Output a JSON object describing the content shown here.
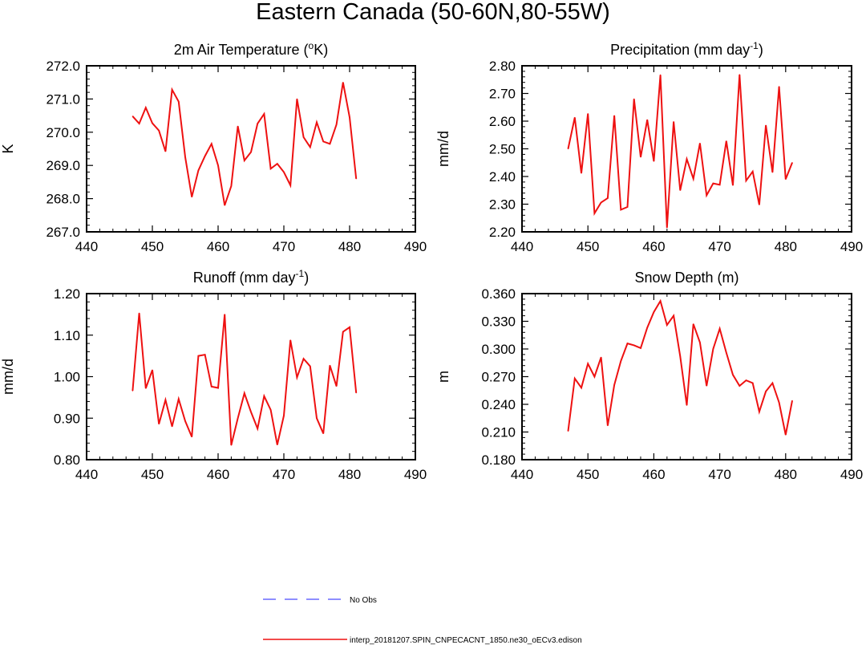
{
  "figure": {
    "title": "Eastern Canada (50-60N,80-55W)",
    "legend": [
      {
        "label": "No Obs",
        "color": "#4a4aff",
        "style": "dashed"
      },
      {
        "label": "interp_20181207.SPIN_CNPECACNT_1850.ne30_oECv3.edison",
        "color": "#ee1111",
        "style": "solid"
      }
    ]
  },
  "chart_data": [
    {
      "type": "line",
      "title": "2m Air Temperature (",
      "title_sup": "o",
      "title_tail": "K)",
      "xlabel": "",
      "ylabel": "K",
      "xlim": [
        440,
        490
      ],
      "ylim": [
        267.0,
        272.0
      ],
      "xticks": [
        "440",
        "450",
        "460",
        "470",
        "480",
        "490"
      ],
      "yticks": [
        "267.0",
        "268.0",
        "269.0",
        "270.0",
        "271.0",
        "272.0"
      ],
      "series": [
        {
          "name": "interp_20181207.SPIN_CNPECACNT_1850.ne30_oECv3.edison",
          "x": [
            447,
            448,
            449,
            450,
            451,
            452,
            453,
            454,
            455,
            456,
            457,
            458,
            459,
            460,
            461,
            462,
            463,
            464,
            465,
            466,
            467,
            468,
            469,
            470,
            471,
            472,
            473,
            474,
            475,
            476,
            477,
            478,
            479,
            480,
            481
          ],
          "values": [
            270.48,
            270.26,
            270.74,
            270.27,
            270.05,
            269.42,
            271.28,
            270.92,
            269.25,
            268.05,
            268.85,
            269.28,
            269.65,
            269.0,
            267.8,
            268.38,
            270.18,
            269.15,
            269.4,
            270.26,
            270.55,
            268.9,
            269.05,
            268.8,
            268.4,
            271.0,
            269.85,
            269.55,
            270.3,
            269.72,
            269.65,
            270.23,
            271.5,
            270.45,
            268.6
          ]
        }
      ]
    },
    {
      "type": "line",
      "title": "Precipitation (mm day",
      "title_sup": "-1",
      "title_tail": ")",
      "xlabel": "",
      "ylabel": "mm/d",
      "xlim": [
        440,
        490
      ],
      "ylim": [
        2.2,
        2.8
      ],
      "xticks": [
        "440",
        "450",
        "460",
        "470",
        "480",
        "490"
      ],
      "yticks": [
        "2.20",
        "2.30",
        "2.40",
        "2.50",
        "2.60",
        "2.70",
        "2.80"
      ],
      "series": [
        {
          "name": "interp_20181207.SPIN_CNPECACNT_1850.ne30_oECv3.edison",
          "x": [
            447,
            448,
            449,
            450,
            451,
            452,
            453,
            454,
            455,
            456,
            457,
            458,
            459,
            460,
            461,
            462,
            463,
            464,
            465,
            466,
            467,
            468,
            469,
            470,
            471,
            472,
            473,
            474,
            475,
            476,
            477,
            478,
            479,
            480,
            481
          ],
          "values": [
            2.5,
            2.613,
            2.412,
            2.627,
            2.267,
            2.306,
            2.322,
            2.62,
            2.28,
            2.29,
            2.68,
            2.47,
            2.605,
            2.455,
            2.767,
            2.215,
            2.598,
            2.35,
            2.463,
            2.392,
            2.52,
            2.332,
            2.375,
            2.37,
            2.528,
            2.368,
            2.768,
            2.385,
            2.418,
            2.298,
            2.585,
            2.415,
            2.725,
            2.39,
            2.45
          ]
        }
      ]
    },
    {
      "type": "line",
      "title": "Runoff (mm day",
      "title_sup": "-1",
      "title_tail": ")",
      "xlabel": "",
      "ylabel": "mm/d",
      "xlim": [
        440,
        490
      ],
      "ylim": [
        0.8,
        1.2
      ],
      "xticks": [
        "440",
        "450",
        "460",
        "470",
        "480",
        "490"
      ],
      "yticks": [
        "0.80",
        "0.90",
        "1.00",
        "1.10",
        "1.20"
      ],
      "series": [
        {
          "name": "interp_20181207.SPIN_CNPECACNT_1850.ne30_oECv3.edison",
          "x": [
            447,
            448,
            449,
            450,
            451,
            452,
            453,
            454,
            455,
            456,
            457,
            458,
            459,
            460,
            461,
            462,
            463,
            464,
            465,
            466,
            467,
            468,
            469,
            470,
            471,
            472,
            473,
            474,
            475,
            476,
            477,
            478,
            479,
            480,
            481
          ],
          "values": [
            0.966,
            1.153,
            0.972,
            1.016,
            0.886,
            0.944,
            0.88,
            0.946,
            0.893,
            0.855,
            1.05,
            1.053,
            0.976,
            0.973,
            1.15,
            0.835,
            0.9,
            0.96,
            0.915,
            0.875,
            0.953,
            0.92,
            0.836,
            0.906,
            1.088,
            0.998,
            1.043,
            1.025,
            0.9,
            0.863,
            1.027,
            0.977,
            1.108,
            1.119,
            0.961
          ]
        }
      ]
    },
    {
      "type": "line",
      "title": "Snow Depth (m)",
      "title_sup": "",
      "title_tail": "",
      "xlabel": "",
      "ylabel": "m",
      "xlim": [
        440,
        490
      ],
      "ylim": [
        0.18,
        0.36
      ],
      "xticks": [
        "440",
        "450",
        "460",
        "470",
        "480",
        "490"
      ],
      "yticks": [
        "0.180",
        "0.210",
        "0.240",
        "0.270",
        "0.300",
        "0.330",
        "0.360"
      ],
      "series": [
        {
          "name": "interp_20181207.SPIN_CNPECACNT_1850.ne30_oECv3.edison",
          "x": [
            447,
            448,
            449,
            450,
            451,
            452,
            453,
            454,
            455,
            456,
            457,
            458,
            459,
            460,
            461,
            462,
            463,
            464,
            465,
            466,
            467,
            468,
            469,
            470,
            471,
            472,
            473,
            474,
            475,
            476,
            477,
            478,
            479,
            480,
            481
          ],
          "values": [
            0.211,
            0.268,
            0.258,
            0.284,
            0.27,
            0.291,
            0.217,
            0.261,
            0.287,
            0.306,
            0.304,
            0.301,
            0.323,
            0.34,
            0.352,
            0.326,
            0.336,
            0.292,
            0.239,
            0.327,
            0.307,
            0.26,
            0.3,
            0.322,
            0.296,
            0.272,
            0.26,
            0.266,
            0.263,
            0.232,
            0.254,
            0.263,
            0.242,
            0.207,
            0.244
          ]
        }
      ]
    }
  ]
}
